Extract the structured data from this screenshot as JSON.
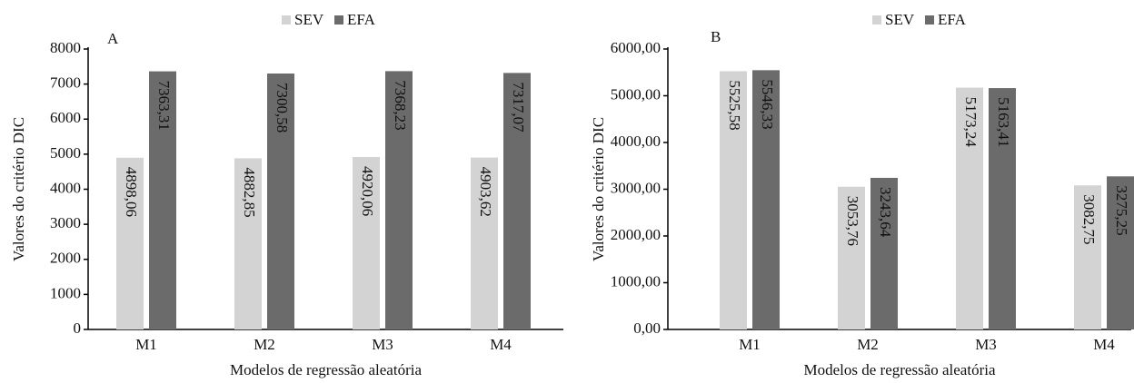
{
  "chart_data": [
    {
      "type": "bar",
      "panel_label": "A",
      "x_label": "Modelos de regressão aleatória",
      "y_label": "Valores do critério DIC",
      "categories": [
        "M1",
        "M2",
        "M3",
        "M4"
      ],
      "series": [
        {
          "name": "SEV",
          "color": "#d3d3d3",
          "values": [
            4898.06,
            4882.85,
            4920.06,
            4903.62
          ],
          "value_labels": [
            "4898,06",
            "4882,85",
            "4920,06",
            "4903,62"
          ]
        },
        {
          "name": "EFA",
          "color": "#6b6b6b",
          "values": [
            7363.31,
            7300.58,
            7368.23,
            7317.07
          ],
          "value_labels": [
            "7363,31",
            "7300,58",
            "7368,23",
            "7317,07"
          ]
        }
      ],
      "ylim": [
        0,
        8000
      ],
      "yticks": [
        0,
        1000,
        2000,
        3000,
        4000,
        5000,
        6000,
        7000,
        8000
      ],
      "legend": "top"
    },
    {
      "type": "bar",
      "panel_label": "B",
      "x_label": "Modelos de regressão aleatória",
      "y_label": "Valores do critério DIC",
      "categories": [
        "M1",
        "M2",
        "M3",
        "M4"
      ],
      "series": [
        {
          "name": "SEV",
          "color": "#d3d3d3",
          "values": [
            5525.58,
            3053.76,
            5173.24,
            3082.75
          ],
          "value_labels": [
            "5525,58",
            "3053,76",
            "5173,24",
            "3082,75"
          ]
        },
        {
          "name": "EFA",
          "color": "#6b6b6b",
          "values": [
            5546.33,
            3243.64,
            5163.41,
            3275.25
          ],
          "value_labels": [
            "5546,33",
            "3243,64",
            "5163,41",
            "3275,25"
          ]
        }
      ],
      "ylim": [
        0,
        6000
      ],
      "yticks": [
        {
          "value": 0,
          "label": "0,00"
        },
        {
          "value": 1000,
          "label": "1000,00"
        },
        {
          "value": 2000,
          "label": "2000,00"
        },
        {
          "value": 3000,
          "label": "3000,00"
        },
        {
          "value": 4000,
          "label": "4000,00"
        },
        {
          "value": 5000,
          "label": "5000,00"
        },
        {
          "value": 6000,
          "label": "6000,00"
        }
      ],
      "legend": "top"
    }
  ]
}
